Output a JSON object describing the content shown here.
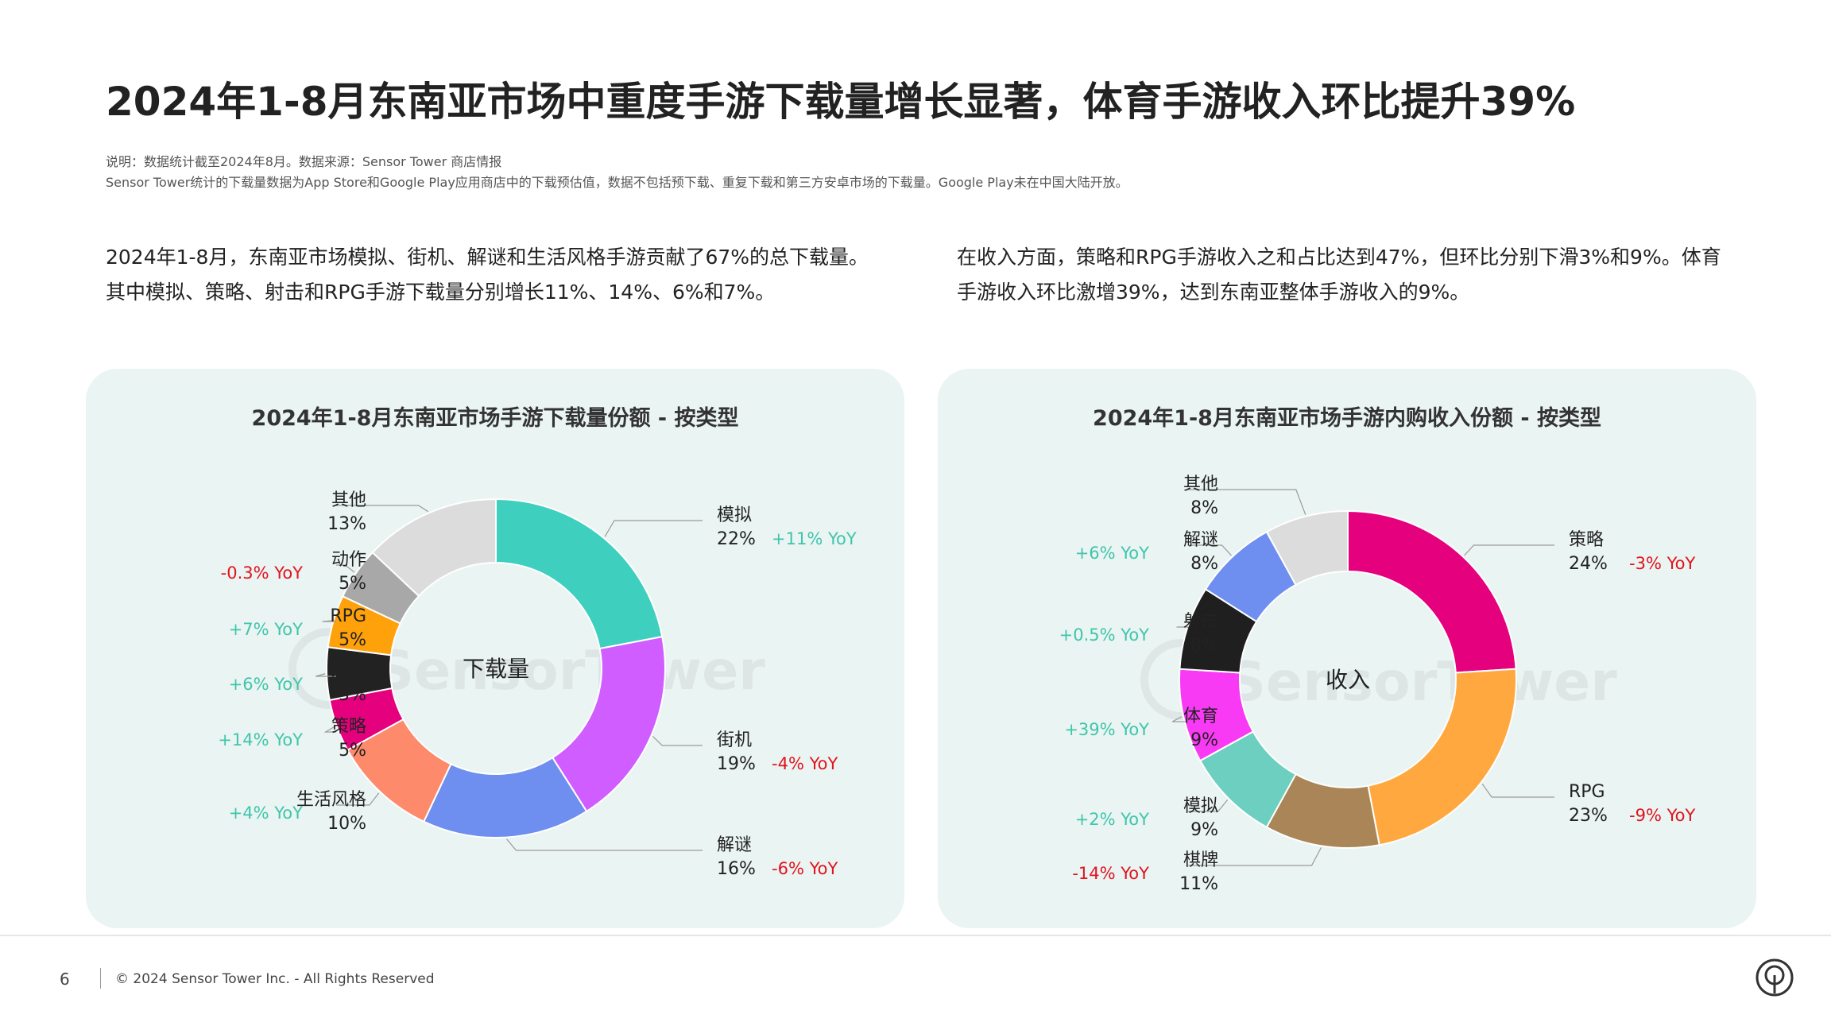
{
  "header": {
    "title": "2024年1-8月东南亚市场中重度手游下载量增长显著，体育手游收入环比提升39%",
    "note1": "说明：数据统计截至2024年8月。数据来源：Sensor Tower 商店情报",
    "note2": "Sensor Tower统计的下载量数据为App Store和Google Play应用商店中的下载预估值，数据不包括预下载、重复下载和第三方安卓市场的下载量。Google Play未在中国大陆开放。"
  },
  "paragraphs": {
    "left_line1": "2024年1-8月，东南亚市场模拟、街机、解谜和生活风格手游贡献了67%的总下载量。",
    "left_line2": "其中模拟、策略、射击和RPG手游下载量分别增长11%、14%、6%和7%。",
    "right_line1": "在收入方面，策略和RPG手游收入之和占比达到47%，但环比分别下滑3%和9%。体育",
    "right_line2": "手游收入环比激增39%，达到东南亚整体手游收入的9%。"
  },
  "watermark": "SensorTower",
  "colors": {
    "positive": "#3fc5ac",
    "negative": "#e0141e",
    "panel_bg": "#eaf4f2"
  },
  "chart_data": [
    {
      "type": "pie",
      "title": "2024年1-8月东南亚市场手游下载量份额 - 按类型",
      "center_label": "下载量",
      "slices": [
        {
          "name": "模拟",
          "value": 22,
          "label": "22%",
          "yoy": "+11% YoY",
          "color": "#3ecfbf"
        },
        {
          "name": "街机",
          "value": 19,
          "label": "19%",
          "yoy": "-4% YoY",
          "color": "#d05dff"
        },
        {
          "name": "解谜",
          "value": 16,
          "label": "16%",
          "yoy": "-6% YoY",
          "color": "#6e8ff0"
        },
        {
          "name": "生活风格",
          "value": 10,
          "label": "10%",
          "yoy": "+4% YoY",
          "color": "#fd8a6b"
        },
        {
          "name": "策略",
          "value": 5,
          "label": "5%",
          "yoy": "+14% YoY",
          "color": "#e5007e"
        },
        {
          "name": "射击",
          "value": 5,
          "label": "5%",
          "yoy": "+6% YoY",
          "color": "#222222"
        },
        {
          "name": "RPG",
          "value": 5,
          "label": "5%",
          "yoy": "+7% YoY",
          "color": "#ffa10a"
        },
        {
          "name": "动作",
          "value": 5,
          "label": "5%",
          "yoy": "-0.3% YoY",
          "color": "#a8a8a8"
        },
        {
          "name": "其他",
          "value": 13,
          "label": "13%",
          "yoy": "",
          "color": "#dcdcdc"
        }
      ]
    },
    {
      "type": "pie",
      "title": "2024年1-8月东南亚市场手游内购收入份额 - 按类型",
      "center_label": "收入",
      "slices": [
        {
          "name": "策略",
          "value": 24,
          "label": "24%",
          "yoy": "-3% YoY",
          "color": "#e5007e"
        },
        {
          "name": "RPG",
          "value": 23,
          "label": "23%",
          "yoy": "-9% YoY",
          "color": "#ffa83f"
        },
        {
          "name": "棋牌",
          "value": 11,
          "label": "11%",
          "yoy": "-14% YoY",
          "color": "#a98557"
        },
        {
          "name": "模拟",
          "value": 9,
          "label": "9%",
          "yoy": "+2% YoY",
          "color": "#6ccfc0"
        },
        {
          "name": "体育",
          "value": 9,
          "label": "9%",
          "yoy": "+39% YoY",
          "color": "#f93af5"
        },
        {
          "name": "射击",
          "value": 8,
          "label": "8%",
          "yoy": "+0.5% YoY",
          "color": "#1f1f1f"
        },
        {
          "name": "解谜",
          "value": 8,
          "label": "8%",
          "yoy": "+6% YoY",
          "color": "#6e8ff0"
        },
        {
          "name": "其他",
          "value": 8,
          "label": "8%",
          "yoy": "",
          "color": "#dcdcdc"
        }
      ]
    }
  ],
  "footer": {
    "page_number": "6",
    "copyright": "© 2024 Sensor Tower Inc. - All Rights Reserved",
    "logo_icon": "sensor-tower-logo-icon"
  }
}
